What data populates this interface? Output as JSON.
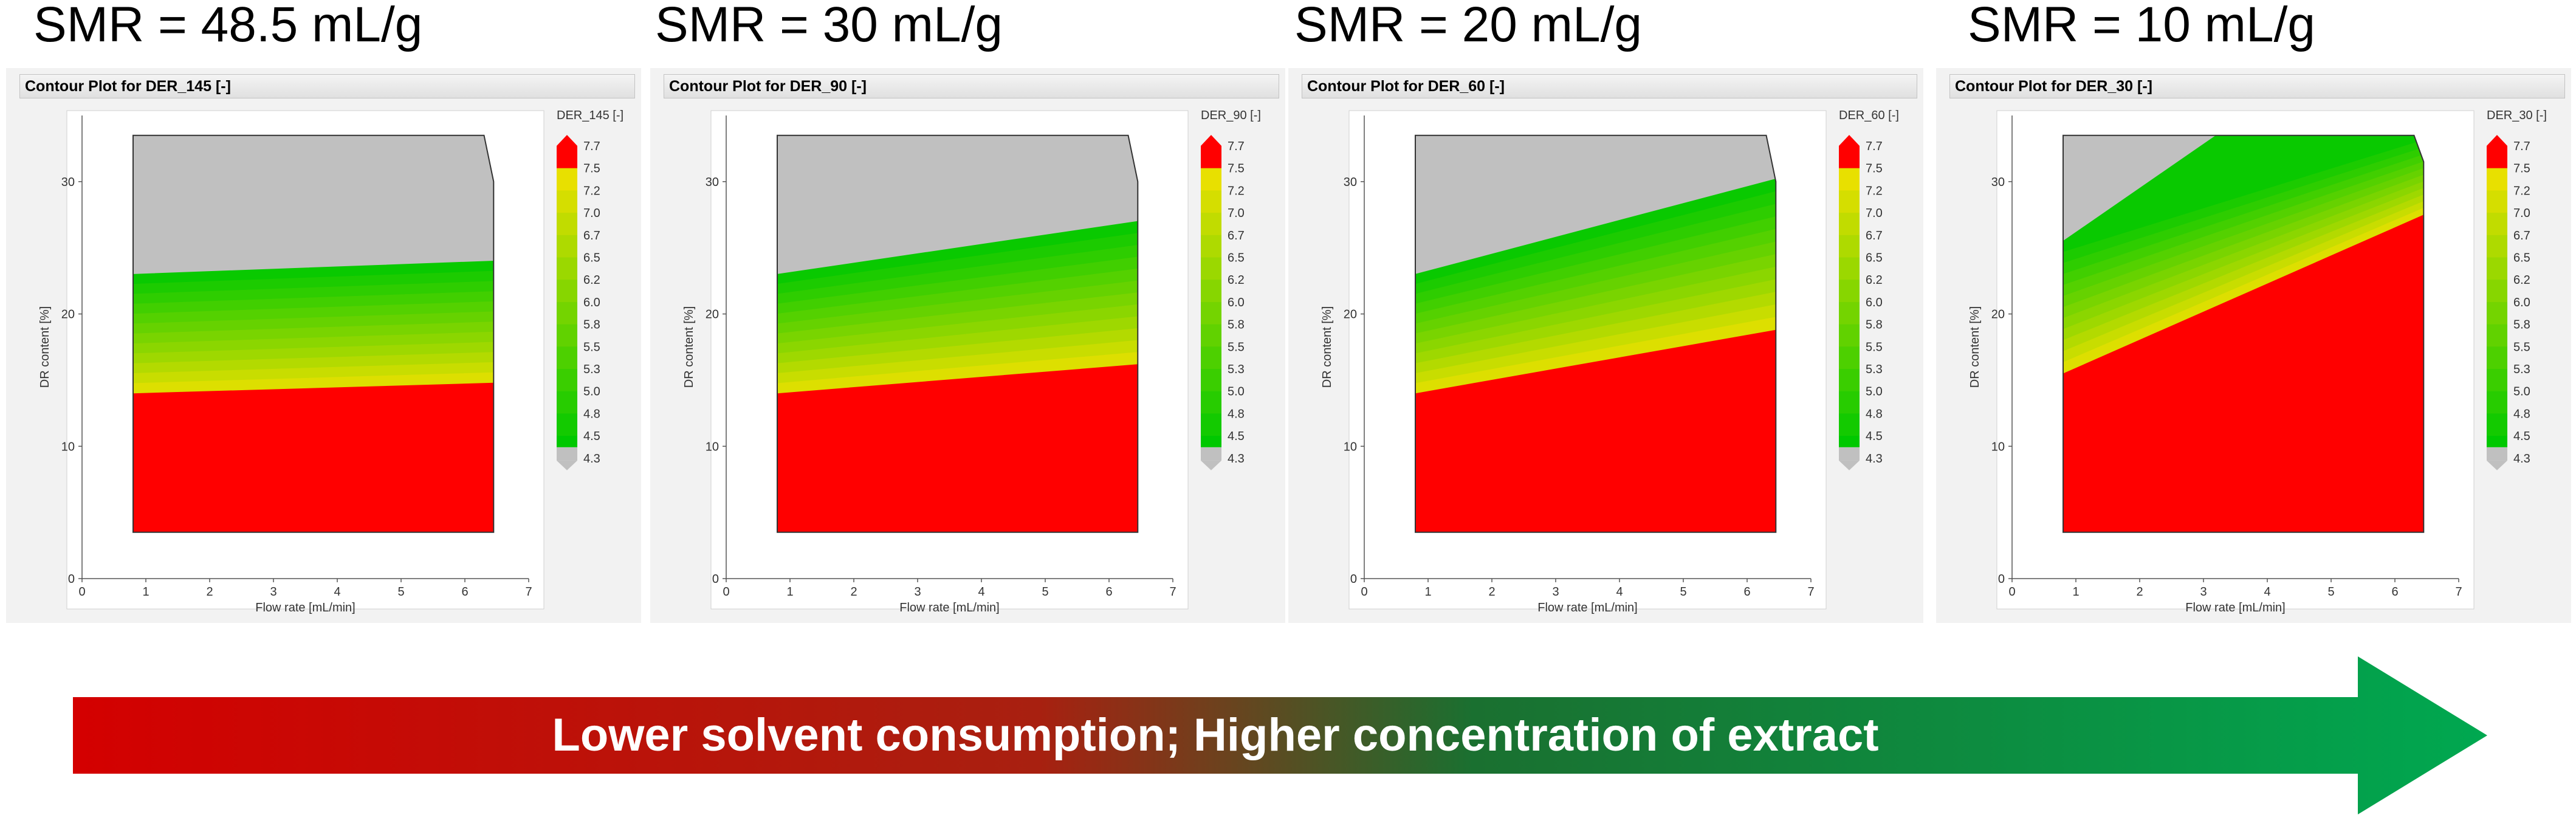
{
  "titles": [
    "SMR = 48.5 mL/g",
    "SMR = 30 mL/g",
    "SMR = 20 mL/g",
    "SMR = 10 mL/g"
  ],
  "arrow_text": "Lower solvent consumption; Higher concentration of extract",
  "colors": {
    "red": "#ff0000",
    "green": "#00cc00",
    "yellow": "#e8e000",
    "gray": "#c0c0c0",
    "arrow_start": "#d40000",
    "arrow_end": "#00a050"
  },
  "chart_data": [
    {
      "type": "contour",
      "title": "Contour Plot for DER_145 [-]",
      "legend_title": "DER_145 [-]",
      "legend_ticks": [
        "7.7",
        "7.5",
        "7.2",
        "7.0",
        "6.7",
        "6.5",
        "6.2",
        "6.0",
        "5.8",
        "5.5",
        "5.3",
        "5.0",
        "4.8",
        "4.5",
        "4.3"
      ],
      "xlabel": "Flow rate [mL/min]",
      "ylabel": "DR content [%]",
      "xlim": [
        0,
        7
      ],
      "ylim": [
        0,
        35
      ],
      "xticks": [
        "0",
        "1",
        "2",
        "3",
        "4",
        "5",
        "6",
        "7"
      ],
      "yticks": [
        "0",
        "10",
        "20",
        "30"
      ],
      "domain": [
        [
          0.8,
          3.5
        ],
        [
          6.45,
          3.5
        ],
        [
          6.45,
          30
        ],
        [
          6.3,
          33.5
        ],
        [
          0.8,
          33.5
        ]
      ],
      "green_boundary": [
        [
          0.8,
          23
        ],
        [
          2,
          23
        ],
        [
          3,
          23
        ],
        [
          4,
          23.1
        ],
        [
          5,
          23.4
        ],
        [
          6.45,
          24
        ]
      ],
      "red_boundary": [
        [
          0.8,
          14
        ],
        [
          2,
          14
        ],
        [
          3,
          14.1
        ],
        [
          4,
          14.2
        ],
        [
          5,
          14.4
        ],
        [
          6.45,
          14.8
        ]
      ]
    },
    {
      "type": "contour",
      "title": "Contour Plot for DER_90 [-]",
      "legend_title": "DER_90 [-]",
      "legend_ticks": [
        "7.7",
        "7.5",
        "7.2",
        "7.0",
        "6.7",
        "6.5",
        "6.2",
        "6.0",
        "5.8",
        "5.5",
        "5.3",
        "5.0",
        "4.8",
        "4.5",
        "4.3"
      ],
      "xlabel": "Flow rate [mL/min]",
      "ylabel": "DR content [%]",
      "xlim": [
        0,
        7
      ],
      "ylim": [
        0,
        35
      ],
      "xticks": [
        "0",
        "1",
        "2",
        "3",
        "4",
        "5",
        "6",
        "7"
      ],
      "yticks": [
        "0",
        "10",
        "20",
        "30"
      ],
      "domain": [
        [
          0.8,
          3.5
        ],
        [
          6.45,
          3.5
        ],
        [
          6.45,
          30
        ],
        [
          6.3,
          33.5
        ],
        [
          0.8,
          33.5
        ]
      ],
      "green_boundary": [
        [
          0.8,
          23
        ],
        [
          2,
          23
        ],
        [
          3,
          23.4
        ],
        [
          4,
          24
        ],
        [
          5,
          25
        ],
        [
          6.2,
          26
        ],
        [
          6.45,
          27
        ]
      ],
      "red_boundary": [
        [
          0.8,
          14
        ],
        [
          2,
          14.2
        ],
        [
          3,
          14.5
        ],
        [
          4,
          15
        ],
        [
          5,
          15.5
        ],
        [
          6.45,
          16.2
        ]
      ]
    },
    {
      "type": "contour",
      "title": "Contour Plot for DER_60 [-]",
      "legend_title": "DER_60 [-]",
      "legend_ticks": [
        "7.7",
        "7.5",
        "7.2",
        "7.0",
        "6.7",
        "6.5",
        "6.2",
        "6.0",
        "5.8",
        "5.5",
        "5.3",
        "5.0",
        "4.8",
        "4.5",
        "4.3"
      ],
      "xlabel": "Flow rate [mL/min]",
      "ylabel": "DR content [%]",
      "xlim": [
        0,
        7
      ],
      "ylim": [
        0,
        35
      ],
      "xticks": [
        "0",
        "1",
        "2",
        "3",
        "4",
        "5",
        "6",
        "7"
      ],
      "yticks": [
        "0",
        "10",
        "20",
        "30"
      ],
      "domain": [
        [
          0.8,
          3.5
        ],
        [
          6.45,
          3.5
        ],
        [
          6.45,
          30
        ],
        [
          6.3,
          33.5
        ],
        [
          0.8,
          33.5
        ]
      ],
      "green_boundary": [
        [
          0.8,
          23
        ],
        [
          2,
          24
        ],
        [
          3,
          25
        ],
        [
          4,
          26.4
        ],
        [
          5,
          28
        ],
        [
          5.6,
          29.4
        ],
        [
          6.45,
          30.2
        ]
      ],
      "red_boundary": [
        [
          0.8,
          14
        ],
        [
          2,
          14.8
        ],
        [
          3,
          15.5
        ],
        [
          4,
          16.3
        ],
        [
          5,
          17.2
        ],
        [
          5.6,
          18.2
        ],
        [
          6.45,
          18.8
        ]
      ]
    },
    {
      "type": "contour",
      "title": "Contour Plot for DER_30 [-]",
      "legend_title": "DER_30 [-]",
      "legend_ticks": [
        "7.7",
        "7.5",
        "7.2",
        "7.0",
        "6.7",
        "6.5",
        "6.2",
        "6.0",
        "5.8",
        "5.5",
        "5.3",
        "5.0",
        "4.8",
        "4.5",
        "4.3"
      ],
      "xlabel": "Flow rate [mL/min]",
      "ylabel": "DR content [%]",
      "xlim": [
        0,
        7
      ],
      "ylim": [
        0,
        35
      ],
      "xticks": [
        "0",
        "1",
        "2",
        "3",
        "4",
        "5",
        "6",
        "7"
      ],
      "yticks": [
        "0",
        "10",
        "20",
        "30"
      ],
      "domain": [
        [
          0.8,
          3.5
        ],
        [
          6.45,
          3.5
        ],
        [
          6.45,
          31.5
        ],
        [
          6.3,
          33.5
        ],
        [
          0.8,
          33.5
        ]
      ],
      "green_boundary": [
        [
          0.8,
          25.5
        ],
        [
          1.5,
          27.5
        ],
        [
          2,
          29.3
        ],
        [
          2.6,
          31.5
        ],
        [
          3.2,
          33.5
        ]
      ],
      "red_boundary": [
        [
          0.8,
          15.5
        ],
        [
          1.5,
          17
        ],
        [
          2,
          18.5
        ],
        [
          3,
          20
        ],
        [
          3.5,
          21
        ],
        [
          4.2,
          22
        ],
        [
          5,
          25
        ],
        [
          5.6,
          24.8
        ],
        [
          6.45,
          27.5
        ]
      ]
    }
  ]
}
